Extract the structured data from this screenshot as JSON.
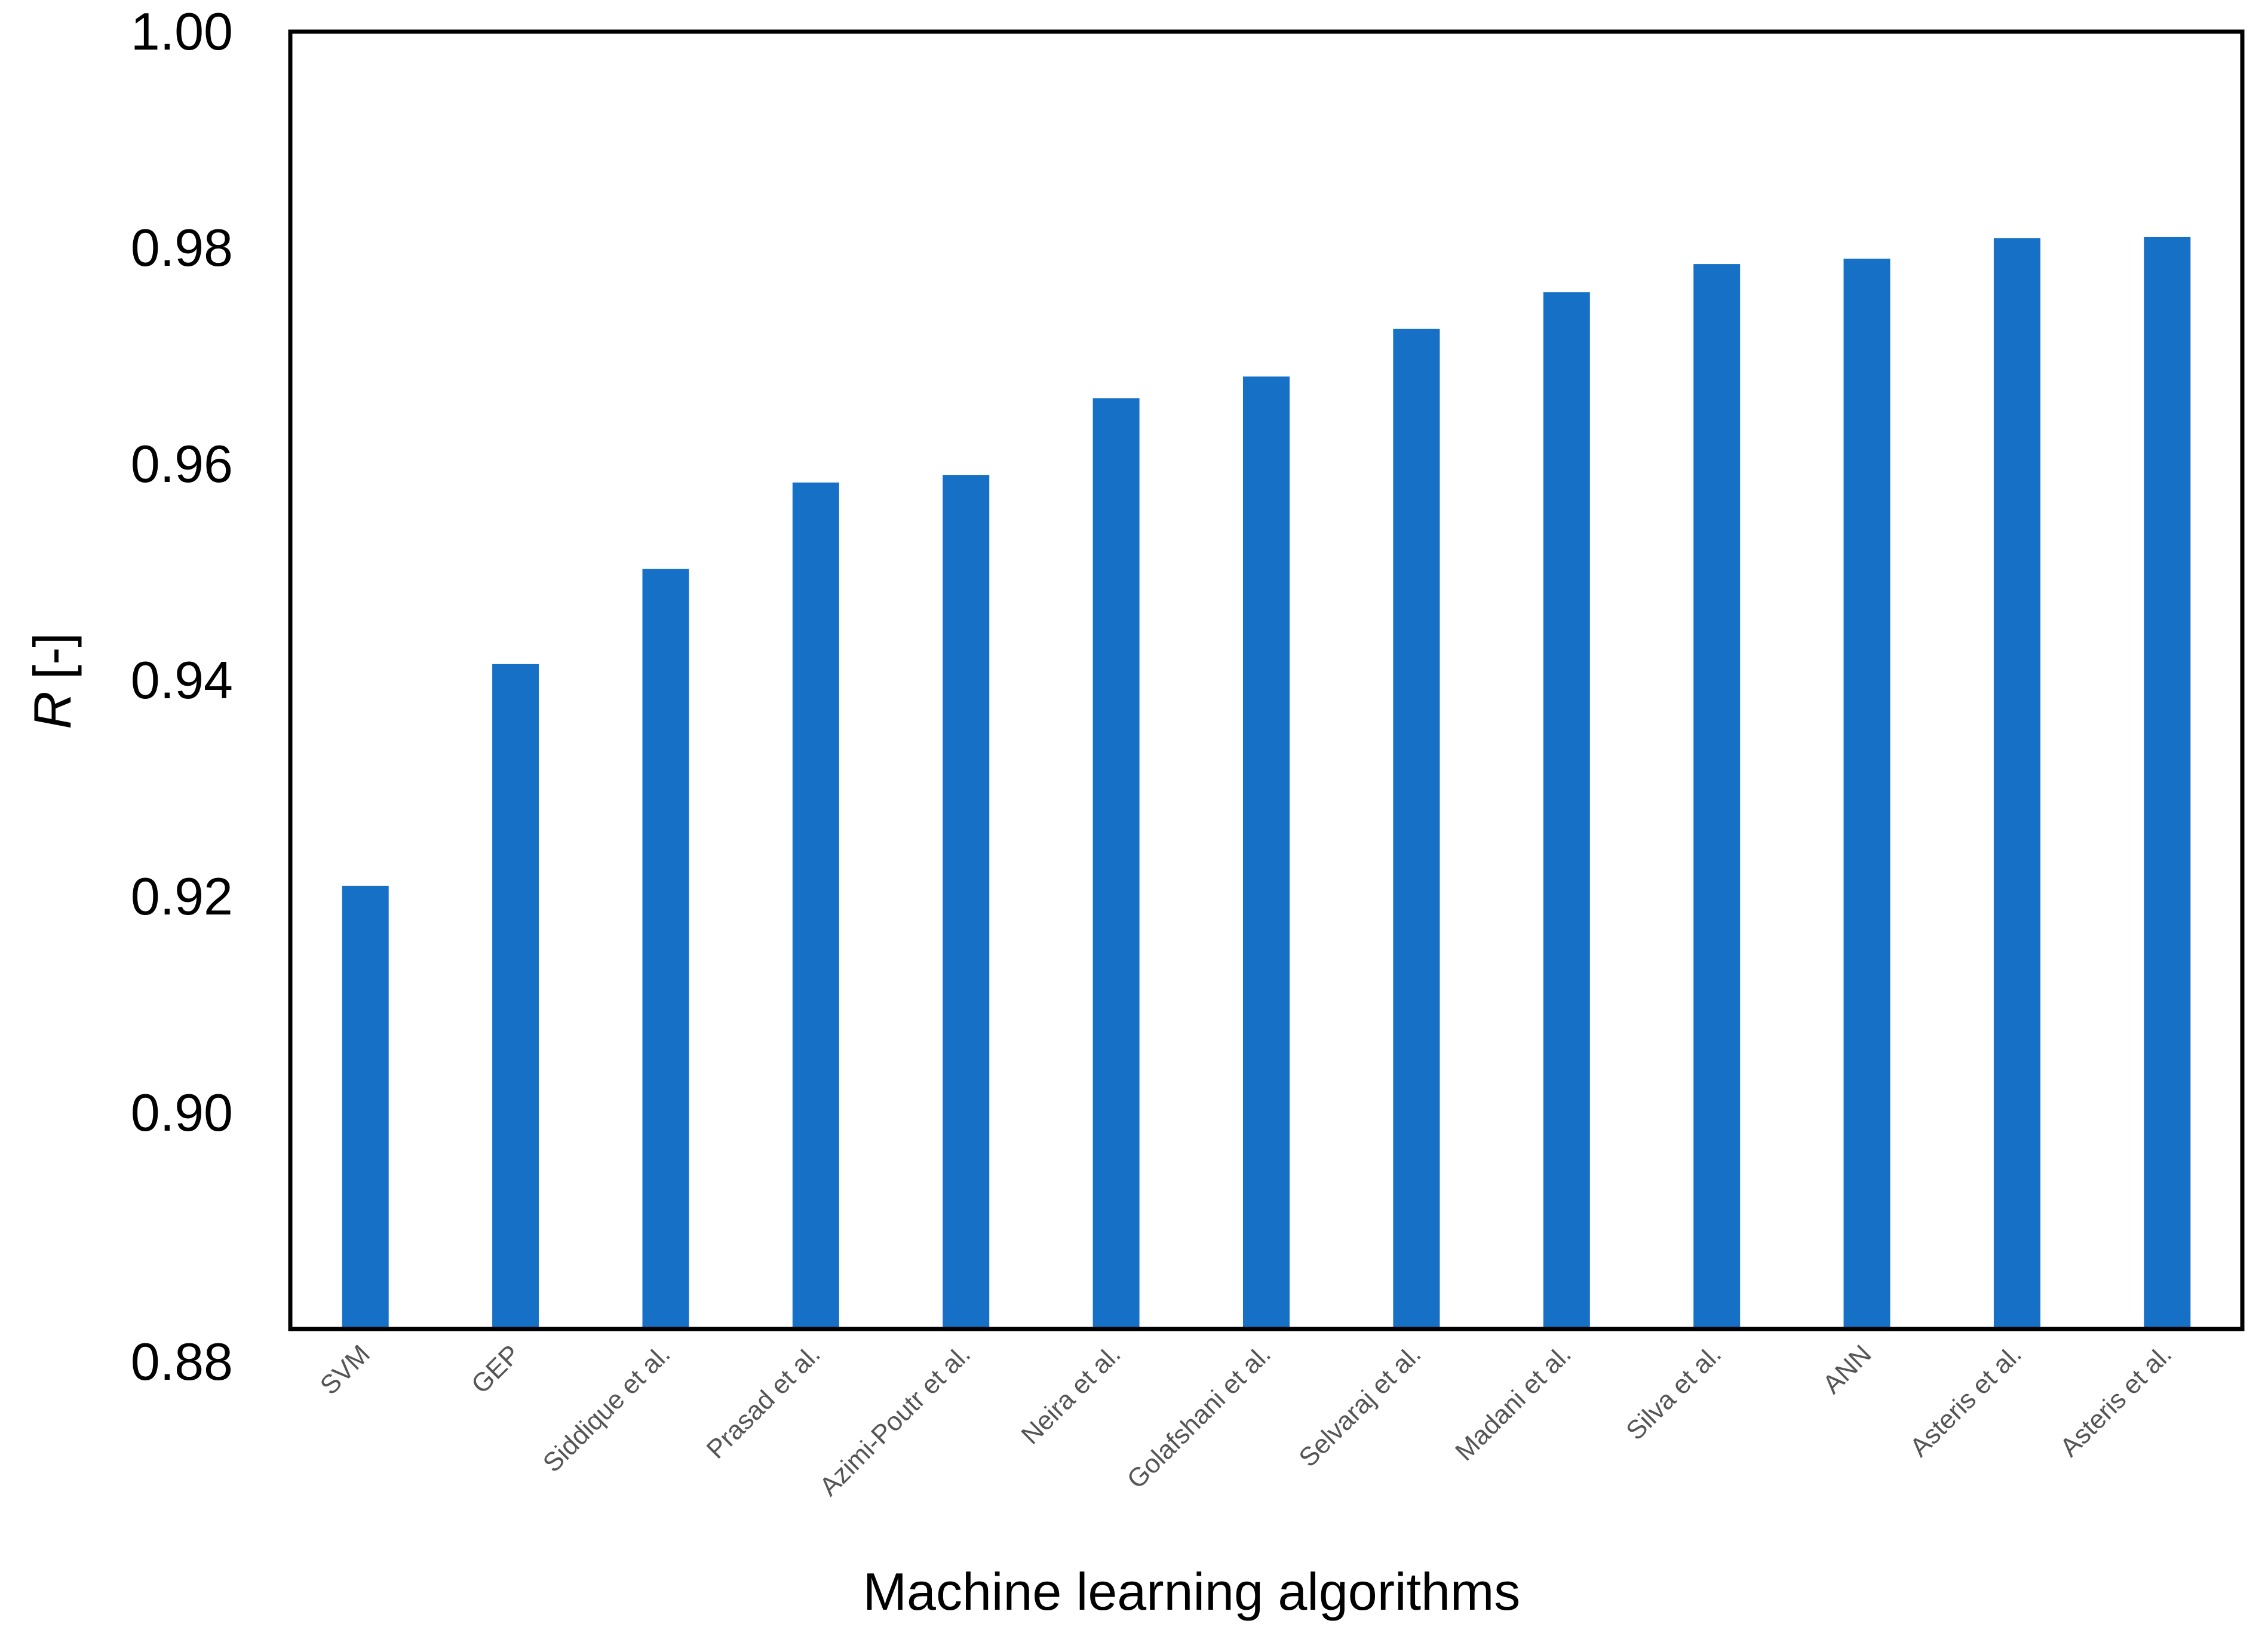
{
  "chart_data": {
    "type": "bar",
    "title": "",
    "xlabel": "Machine learning algorithms",
    "ylabel": "[-]",
    "ylabel_symbol": "R",
    "ylim": [
      0.88,
      1.0
    ],
    "yticks": [
      "0.88",
      "0.90",
      "0.92",
      "0.94",
      "0.96",
      "0.98",
      "1.00"
    ],
    "yticks_values": [
      0.88,
      0.9,
      0.92,
      0.94,
      0.96,
      0.98,
      1.0
    ],
    "categories": [
      "SVM",
      "GEP",
      "Siddique et al.",
      "Prasad et al.",
      "Azimi-Poutr et al.",
      "Neira et al.",
      "Golafshani et al.",
      "Selvaraj et al.",
      "Madani et al.",
      "Silva et al.",
      "ANN",
      "Asteris et al.",
      "Asteris et al."
    ],
    "values": [
      0.921,
      0.9415,
      0.9503,
      0.9583,
      0.959,
      0.9661,
      0.9681,
      0.9725,
      0.9759,
      0.9785,
      0.979,
      0.9809,
      0.981
    ],
    "bar_color": "#1570C6",
    "grid": false,
    "legend": "none"
  }
}
